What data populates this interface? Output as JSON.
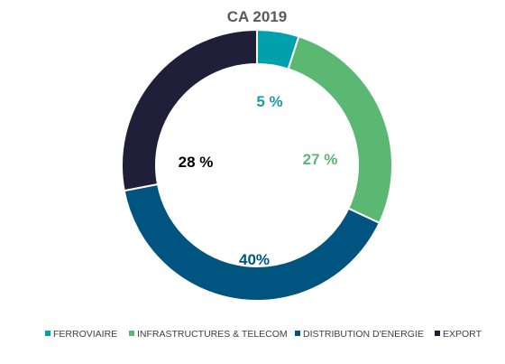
{
  "chart_data": {
    "type": "pie",
    "title": "CA 2019",
    "categories": [
      "FERROVIAIRE",
      "INFRASTRUCTURES & TELECOM",
      "DISTRIBUTION D'ENERGIE",
      "EXPORT"
    ],
    "values": [
      5,
      27,
      40,
      28
    ],
    "data_labels": [
      "5 %",
      "27 %",
      "40%",
      "28 %"
    ],
    "label_colors": [
      "#1a9ba6",
      "#5bb873",
      "#005580",
      "#000000"
    ],
    "colors": [
      "#00a0ad",
      "#5bb873",
      "#005580",
      "#1f1f3a"
    ],
    "legend": "bottom",
    "donut": true
  }
}
